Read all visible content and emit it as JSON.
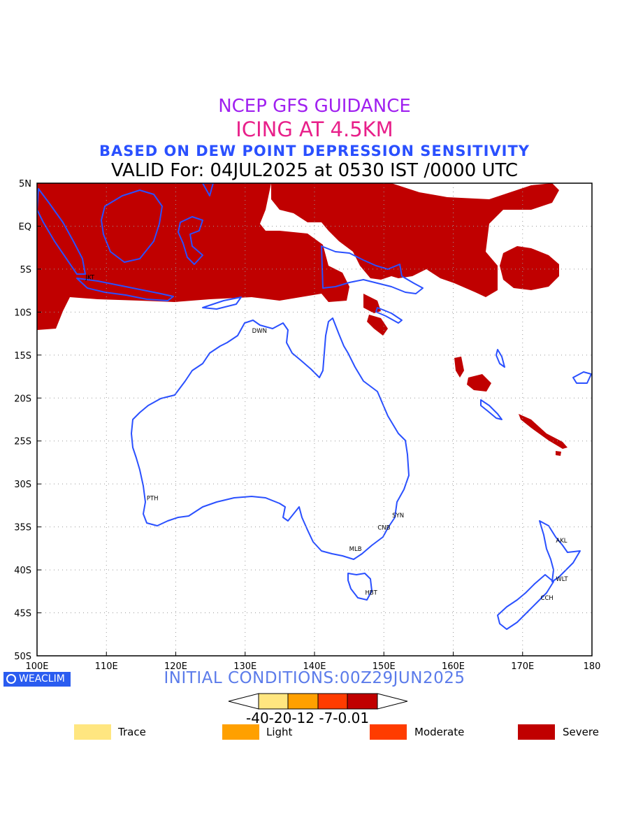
{
  "titles": {
    "line1": "NCEP GFS GUIDANCE",
    "line2": "ICING AT 4.5KM",
    "line3": "BASED ON DEW POINT DEPRESSION SENSITIVITY",
    "line4": "VALID For: 04JUL2025 at 0530 IST /0000 UTC"
  },
  "axes": {
    "lon_labels": [
      "100E",
      "110E",
      "120E",
      "130E",
      "140E",
      "150E",
      "160E",
      "170E",
      "180"
    ],
    "lat_labels": [
      "5N",
      "EQ",
      "5S",
      "10S",
      "15S",
      "20S",
      "25S",
      "30S",
      "35S",
      "40S",
      "45S",
      "50S"
    ],
    "lon_range": [
      100,
      180
    ],
    "lat_range": [
      5,
      -50
    ],
    "grid": "dotted"
  },
  "cities": [
    {
      "label": "JKT",
      "lon": 107.0,
      "lat": -6.2
    },
    {
      "label": "DWN",
      "lon": 131.0,
      "lat": -12.4
    },
    {
      "label": "PTH",
      "lon": 115.8,
      "lat": -31.9
    },
    {
      "label": "SYN",
      "lon": 151.2,
      "lat": -33.9
    },
    {
      "label": "CNB",
      "lon": 149.1,
      "lat": -35.3
    },
    {
      "label": "MLB",
      "lon": 145.0,
      "lat": -37.8
    },
    {
      "label": "HBT",
      "lon": 147.3,
      "lat": -42.9
    },
    {
      "label": "AKL",
      "lon": 174.8,
      "lat": -36.8
    },
    {
      "label": "WLT",
      "lon": 174.8,
      "lat": -41.3
    },
    {
      "label": "CCH",
      "lon": 172.6,
      "lat": -43.5
    }
  ],
  "colors": {
    "trace": "#ffe680",
    "light": "#ffa000",
    "moderate": "#ff3c00",
    "severe": "#c00000",
    "coast": "#2a50ff"
  },
  "footer": {
    "badge": "WEACLIM",
    "initial": "INITIAL CONDITIONS:00Z29JUN2025"
  },
  "colorbar": {
    "labels": "-40-20-12 -7-0.01",
    "levels": [
      "-40",
      "-20",
      "-12",
      "-7",
      "-0.01"
    ]
  },
  "legend": [
    {
      "label": "Trace",
      "color": "#ffe680"
    },
    {
      "label": "Light",
      "color": "#ffa000"
    },
    {
      "label": "Moderate",
      "color": "#ff3c00"
    },
    {
      "label": "Severe",
      "color": "#c00000"
    }
  ]
}
